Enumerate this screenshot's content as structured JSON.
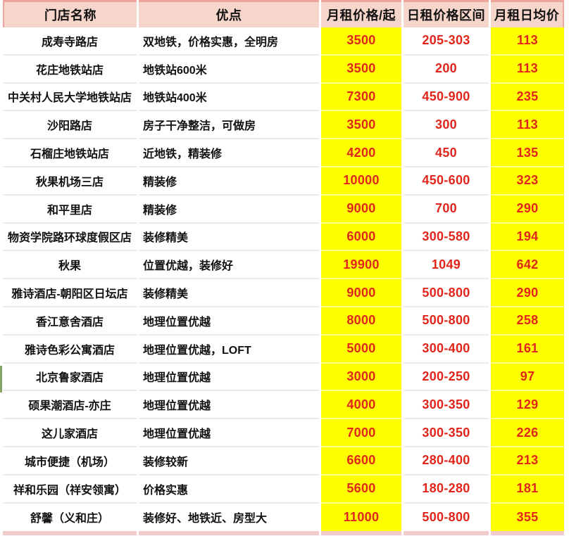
{
  "table": {
    "columns": [
      {
        "label": "门店名称"
      },
      {
        "label": "优点"
      },
      {
        "label": "月租价格/起"
      },
      {
        "label": "日租价格区间"
      },
      {
        "label": "月租日均价"
      }
    ],
    "rows": [
      {
        "name": "成寿寺路店",
        "advantage": "双地铁，价格实惠，全明房",
        "monthly": "3500",
        "daily_range": "205-303",
        "daily_avg": "113"
      },
      {
        "name": "花庄地铁站店",
        "advantage": "地铁站600米",
        "monthly": "3500",
        "daily_range": "200",
        "daily_avg": "113"
      },
      {
        "name": "中关村人民大学地铁站店",
        "advantage": "地铁站400米",
        "monthly": "7300",
        "daily_range": "450-900",
        "daily_avg": "235"
      },
      {
        "name": "沙阳路店",
        "advantage": "房子干净整洁，可做房",
        "monthly": "3500",
        "daily_range": "300",
        "daily_avg": "113"
      },
      {
        "name": "石榴庄地铁站店",
        "advantage": "近地铁，精装修",
        "monthly": "4200",
        "daily_range": "450",
        "daily_avg": "135"
      },
      {
        "name": "秋果机场三店",
        "advantage": "精装修",
        "monthly": "10000",
        "daily_range": "450-600",
        "daily_avg": "323"
      },
      {
        "name": "和平里店",
        "advantage": "精装修",
        "monthly": "9000",
        "daily_range": "700",
        "daily_avg": "290"
      },
      {
        "name": "物资学院路环球度假区店",
        "advantage": "装修精美",
        "monthly": "6000",
        "daily_range": "300-580",
        "daily_avg": "194"
      },
      {
        "name": "秋果",
        "advantage": "位置优越，装修好",
        "monthly": "19900",
        "daily_range": "1049",
        "daily_avg": "642"
      },
      {
        "name": "雅诗酒店-朝阳区日坛店",
        "advantage": "装修精美",
        "monthly": "9000",
        "daily_range": "500-800",
        "daily_avg": "290"
      },
      {
        "name": "香江意舍酒店",
        "advantage": "地理位置优越",
        "monthly": "8000",
        "daily_range": "500-800",
        "daily_avg": "258"
      },
      {
        "name": "雅诗色彩公寓酒店",
        "advantage": "地理位置优越，LOFT",
        "monthly": "5000",
        "daily_range": "300-400",
        "daily_avg": "161"
      },
      {
        "name": "北京鲁家酒店",
        "advantage": "地理位置优越",
        "monthly": "3000",
        "daily_range": "200-250",
        "daily_avg": "97"
      },
      {
        "name": "硕果潮酒店-亦庄",
        "advantage": "地理位置优越",
        "monthly": "4000",
        "daily_range": "300-350",
        "daily_avg": "129"
      },
      {
        "name": "这儿家酒店",
        "advantage": "地理位置优越",
        "monthly": "7000",
        "daily_range": "300-350",
        "daily_avg": "226"
      },
      {
        "name": "城市便捷（机场）",
        "advantage": "装修较新",
        "monthly": "6600",
        "daily_range": "280-400",
        "daily_avg": "213"
      },
      {
        "name": "祥和乐园（祥安领寓）",
        "advantage": "价格实惠",
        "monthly": "5600",
        "daily_range": "180-280",
        "daily_avg": "181"
      },
      {
        "name": "舒馨（义和庄）",
        "advantage": "装修好、地铁近、房型大",
        "monthly": "11000",
        "daily_range": "500-800",
        "daily_avg": "355"
      }
    ]
  },
  "colors": {
    "header_pink": "#f6d5ca",
    "header_accent": "#eda59c",
    "price_yellow": "#ffff00",
    "price_red": "#e1251b",
    "footer_pink": "#f1caca",
    "green_strip": "#85a563"
  }
}
